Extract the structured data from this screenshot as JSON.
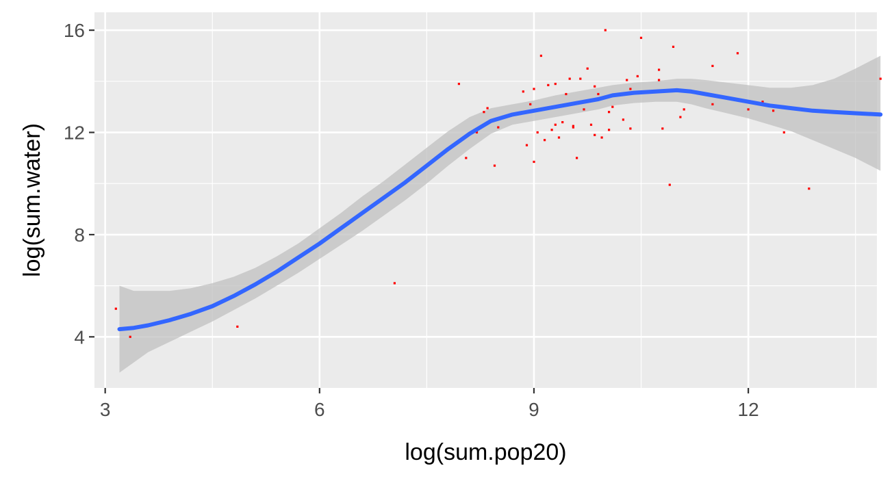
{
  "chart_data": {
    "type": "scatter",
    "xlabel": "log(sum.pop20)",
    "ylabel": "log(sum.water)",
    "xlim": [
      2.85,
      13.8
    ],
    "ylim": [
      2.0,
      16.7
    ],
    "x_ticks": [
      3,
      6,
      9,
      12
    ],
    "y_ticks": [
      4,
      8,
      12,
      16
    ],
    "x_tick_labels": [
      "3",
      "6",
      "9",
      "12"
    ],
    "y_tick_labels": [
      "4",
      "8",
      "12",
      "16"
    ],
    "grid": true,
    "colors": {
      "panel_background": "#ebebeb",
      "grid": "#ffffff",
      "points": "#ff0000",
      "smooth_line": "#3366ff",
      "confidence_band": "#bebebe"
    },
    "series": [
      {
        "type": "points",
        "x": [
          3.15,
          3.35,
          4.85,
          7.05,
          7.95,
          8.05,
          8.2,
          8.3,
          8.35,
          8.45,
          8.5,
          8.85,
          8.9,
          8.95,
          9.0,
          9.0,
          9.05,
          9.1,
          9.15,
          9.2,
          9.25,
          9.3,
          9.3,
          9.35,
          9.4,
          9.45,
          9.5,
          9.55,
          9.55,
          9.6,
          9.65,
          9.7,
          9.75,
          9.75,
          9.8,
          9.85,
          9.85,
          9.9,
          9.95,
          10.0,
          10.0,
          10.05,
          10.05,
          10.1,
          10.2,
          10.25,
          10.3,
          10.3,
          10.35,
          10.35,
          10.45,
          10.5,
          10.75,
          10.75,
          10.8,
          10.9,
          10.95,
          11.05,
          11.1,
          11.5,
          11.5,
          11.85,
          12.0,
          12.2,
          12.35,
          12.5,
          12.85,
          13.85
        ],
        "y": [
          5.1,
          4.0,
          4.4,
          6.1,
          13.9,
          11.0,
          12.0,
          12.8,
          12.95,
          10.7,
          12.2,
          13.6,
          11.5,
          13.1,
          10.85,
          13.7,
          12.0,
          15.0,
          11.7,
          13.85,
          12.1,
          13.9,
          12.3,
          11.8,
          12.4,
          13.5,
          14.1,
          12.2,
          12.25,
          11.0,
          14.1,
          12.9,
          13.2,
          14.5,
          12.3,
          11.9,
          13.8,
          13.5,
          11.8,
          16.0,
          13.4,
          12.8,
          12.1,
          13.0,
          13.5,
          12.5,
          14.05,
          13.5,
          12.15,
          13.7,
          14.2,
          15.7,
          14.45,
          14.05,
          12.15,
          9.95,
          15.35,
          12.6,
          12.9,
          14.6,
          13.1,
          15.1,
          12.9,
          13.2,
          12.85,
          12.0,
          9.8,
          14.1
        ]
      },
      {
        "type": "smooth",
        "x": [
          3.2,
          3.4,
          3.6,
          3.9,
          4.2,
          4.5,
          4.8,
          5.1,
          5.4,
          5.7,
          6.0,
          6.3,
          6.6,
          6.9,
          7.2,
          7.5,
          7.8,
          8.1,
          8.4,
          8.7,
          9.0,
          9.3,
          9.6,
          9.9,
          10.1,
          10.4,
          10.7,
          11.0,
          11.2,
          11.4,
          11.7,
          12.0,
          12.3,
          12.6,
          12.9,
          13.2,
          13.5,
          13.85
        ],
        "y": [
          4.3,
          4.35,
          4.45,
          4.65,
          4.9,
          5.2,
          5.6,
          6.05,
          6.55,
          7.1,
          7.65,
          8.25,
          8.85,
          9.45,
          10.05,
          10.7,
          11.35,
          11.95,
          12.45,
          12.7,
          12.85,
          13.0,
          13.15,
          13.3,
          13.45,
          13.55,
          13.6,
          13.65,
          13.6,
          13.5,
          13.35,
          13.2,
          13.05,
          12.95,
          12.85,
          12.8,
          12.75,
          12.7
        ],
        "lower": [
          2.6,
          3.0,
          3.4,
          3.8,
          4.2,
          4.6,
          5.05,
          5.5,
          6.0,
          6.5,
          7.05,
          7.6,
          8.15,
          8.75,
          9.35,
          10.0,
          10.7,
          11.35,
          11.95,
          12.3,
          12.45,
          12.6,
          12.75,
          12.9,
          13.05,
          13.15,
          13.2,
          13.2,
          13.1,
          12.95,
          12.75,
          12.55,
          12.3,
          12.05,
          11.7,
          11.35,
          11.0,
          10.5
        ],
        "upper": [
          6.0,
          5.8,
          5.8,
          5.8,
          5.9,
          6.1,
          6.35,
          6.7,
          7.15,
          7.65,
          8.25,
          8.85,
          9.5,
          10.1,
          10.75,
          11.4,
          12.05,
          12.6,
          12.95,
          13.1,
          13.25,
          13.45,
          13.6,
          13.75,
          13.85,
          13.95,
          14.0,
          14.1,
          14.1,
          14.05,
          13.95,
          13.85,
          13.75,
          13.75,
          13.85,
          14.1,
          14.5,
          15.0
        ]
      }
    ]
  }
}
